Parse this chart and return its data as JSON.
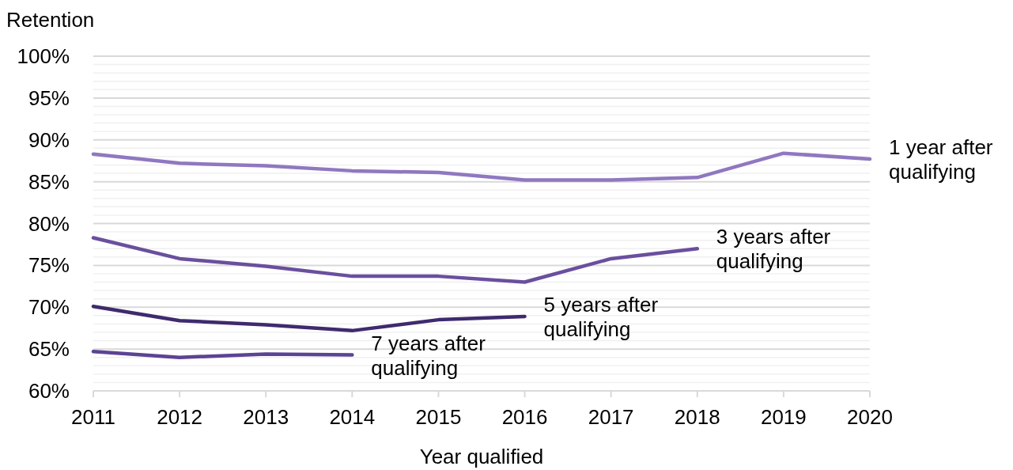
{
  "chart_data": {
    "type": "line",
    "ylabel": "Retention",
    "xlabel": "Year qualified",
    "x": [
      2011,
      2012,
      2013,
      2014,
      2015,
      2016,
      2017,
      2018,
      2019,
      2020
    ],
    "xlim": [
      2011,
      2020
    ],
    "xticks": [
      2011,
      2012,
      2013,
      2014,
      2015,
      2016,
      2017,
      2018,
      2019,
      2020
    ],
    "ylim": [
      60,
      100
    ],
    "yticks": [
      {
        "value": 60,
        "label": "60%"
      },
      {
        "value": 61,
        "label": null
      },
      {
        "value": 62,
        "label": null
      },
      {
        "value": 63,
        "label": null
      },
      {
        "value": 64,
        "label": null
      },
      {
        "value": 65,
        "label": "65%"
      },
      {
        "value": 66,
        "label": null
      },
      {
        "value": 67,
        "label": null
      },
      {
        "value": 68,
        "label": null
      },
      {
        "value": 69,
        "label": null
      },
      {
        "value": 70,
        "label": "70%"
      },
      {
        "value": 71,
        "label": null
      },
      {
        "value": 72,
        "label": null
      },
      {
        "value": 73,
        "label": null
      },
      {
        "value": 74,
        "label": null
      },
      {
        "value": 75,
        "label": "75%"
      },
      {
        "value": 76,
        "label": null
      },
      {
        "value": 77,
        "label": null
      },
      {
        "value": 78,
        "label": null
      },
      {
        "value": 79,
        "label": null
      },
      {
        "value": 80,
        "label": "80%"
      },
      {
        "value": 81,
        "label": null
      },
      {
        "value": 82,
        "label": null
      },
      {
        "value": 83,
        "label": null
      },
      {
        "value": 84,
        "label": null
      },
      {
        "value": 85,
        "label": "85%"
      },
      {
        "value": 86,
        "label": null
      },
      {
        "value": 87,
        "label": null
      },
      {
        "value": 88,
        "label": null
      },
      {
        "value": 89,
        "label": null
      },
      {
        "value": 90,
        "label": "90%"
      },
      {
        "value": 91,
        "label": null
      },
      {
        "value": 92,
        "label": null
      },
      {
        "value": 93,
        "label": null
      },
      {
        "value": 94,
        "label": null
      },
      {
        "value": 95,
        "label": "95%"
      },
      {
        "value": 96,
        "label": null
      },
      {
        "value": 97,
        "label": null
      },
      {
        "value": 98,
        "label": null
      },
      {
        "value": 99,
        "label": null
      },
      {
        "value": 100,
        "label": "100%"
      }
    ],
    "grid": "y",
    "marker": "none",
    "line_style": "solid",
    "series": [
      {
        "name": "1 year after qualifying",
        "color": "#8f78c0",
        "values": [
          88.3,
          87.2,
          86.9,
          86.3,
          86.1,
          85.2,
          85.2,
          85.5,
          88.4,
          87.7
        ]
      },
      {
        "name": "3 years after qualifying",
        "color": "#6a4f9e",
        "values": [
          78.3,
          75.8,
          74.9,
          73.7,
          73.7,
          73.0,
          75.8,
          77.0,
          null,
          null
        ]
      },
      {
        "name": "5 years after qualifying",
        "color": "#3f2a6e",
        "values": [
          70.1,
          68.4,
          67.9,
          67.2,
          68.5,
          68.9,
          null,
          null,
          null,
          null
        ]
      },
      {
        "name": "7 years after qualifying",
        "color": "#5c4393",
        "values": [
          64.7,
          64.0,
          64.4,
          64.3,
          null,
          null,
          null,
          null,
          null,
          null
        ]
      }
    ]
  }
}
